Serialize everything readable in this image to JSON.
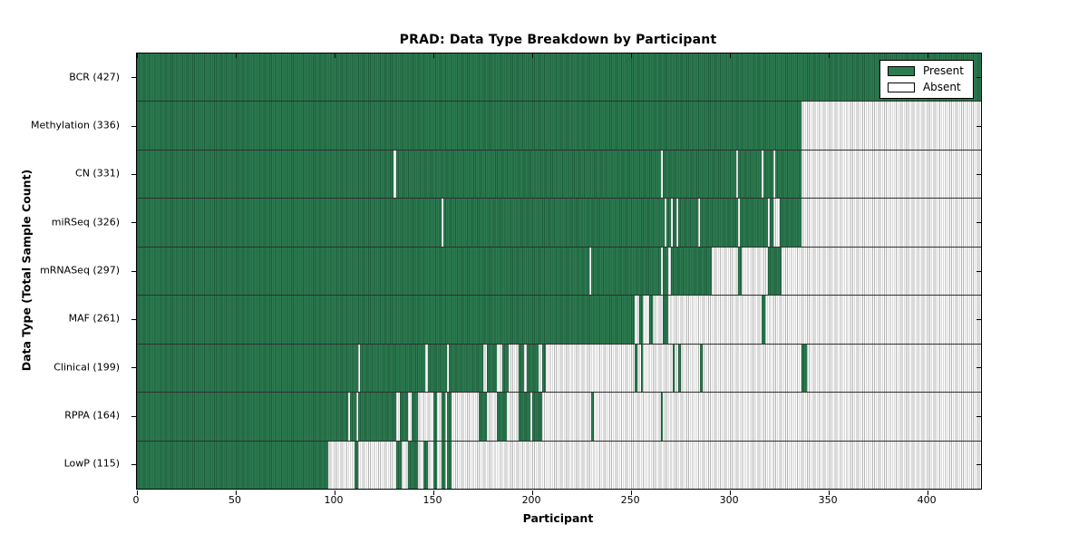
{
  "title": "PRAD: Data Type Breakdown by Participant",
  "axes": {
    "xlabel": "Participant",
    "ylabel": "Data Type (Total Sample Count)"
  },
  "legend": {
    "present_label": "Present",
    "absent_label": "Absent",
    "position": "upper right"
  },
  "colors": {
    "present": "#2d7c51",
    "present_stripe": "#1d5c3b",
    "absent": "#ffffff",
    "absent_stripe": "#b5b5b5",
    "frame": "#000000"
  },
  "chart_data": {
    "type": "heatmap",
    "title": "PRAD: Data Type Breakdown by Participant",
    "xlabel": "Participant",
    "ylabel": "Data Type (Total Sample Count)",
    "legend_entries": [
      "Present",
      "Absent"
    ],
    "legend_position": "upper right",
    "grid": false,
    "x_range": [
      0,
      427
    ],
    "x_ticks": [
      0,
      50,
      100,
      150,
      200,
      250,
      300,
      350,
      400
    ],
    "value_encoding": {
      "present": "green filled column",
      "absent": "white/gray column"
    },
    "rows": [
      {
        "label": "BCR (427)",
        "data_type": "BCR",
        "total_samples": 427,
        "present_segments": [
          [
            0,
            427
          ]
        ]
      },
      {
        "label": "Methylation (336)",
        "data_type": "Methylation",
        "total_samples": 336,
        "present_segments": [
          [
            0,
            336
          ]
        ]
      },
      {
        "label": "CN (331)",
        "data_type": "CN",
        "total_samples": 331,
        "present_segments": [
          [
            0,
            130
          ],
          [
            131,
            265
          ],
          [
            266,
            303
          ],
          [
            304,
            316
          ],
          [
            317,
            322
          ],
          [
            323,
            336
          ]
        ]
      },
      {
        "label": "miRSeq (326)",
        "data_type": "miRSeq",
        "total_samples": 326,
        "present_segments": [
          [
            0,
            154
          ],
          [
            155,
            267
          ],
          [
            268,
            270
          ],
          [
            271,
            273
          ],
          [
            274,
            284
          ],
          [
            285,
            304
          ],
          [
            305,
            319
          ],
          [
            320,
            322
          ],
          [
            325,
            336
          ]
        ]
      },
      {
        "label": "mRNASeq (297)",
        "data_type": "mRNASeq",
        "total_samples": 297,
        "present_segments": [
          [
            0,
            229
          ],
          [
            230,
            265
          ],
          [
            266,
            269
          ],
          [
            270,
            291
          ],
          [
            304,
            306
          ],
          [
            319,
            326
          ]
        ]
      },
      {
        "label": "MAF (261)",
        "data_type": "MAF",
        "total_samples": 261,
        "present_segments": [
          [
            0,
            252
          ],
          [
            254,
            256
          ],
          [
            259,
            261
          ],
          [
            266,
            269
          ],
          [
            316,
            318
          ]
        ]
      },
      {
        "label": "Clinical (199)",
        "data_type": "Clinical",
        "total_samples": 199,
        "present_segments": [
          [
            0,
            112
          ],
          [
            113,
            146
          ],
          [
            147,
            157
          ],
          [
            158,
            175
          ],
          [
            177,
            182
          ],
          [
            185,
            188
          ],
          [
            193,
            196
          ],
          [
            197,
            203
          ],
          [
            205,
            207
          ],
          [
            252,
            253
          ],
          [
            255,
            256
          ],
          [
            271,
            272
          ],
          [
            274,
            275
          ],
          [
            285,
            286
          ],
          [
            336,
            339
          ]
        ]
      },
      {
        "label": "RPPA (164)",
        "data_type": "RPPA",
        "total_samples": 164,
        "present_segments": [
          [
            0,
            107
          ],
          [
            108,
            111
          ],
          [
            112,
            131
          ],
          [
            133,
            137
          ],
          [
            139,
            142
          ],
          [
            150,
            152
          ],
          [
            154,
            156
          ],
          [
            157,
            159
          ],
          [
            173,
            177
          ],
          [
            182,
            187
          ],
          [
            193,
            199
          ],
          [
            200,
            205
          ],
          [
            230,
            231
          ],
          [
            265,
            266
          ]
        ]
      },
      {
        "label": "LowP (115)",
        "data_type": "LowP",
        "total_samples": 115,
        "present_segments": [
          [
            0,
            97
          ],
          [
            110,
            112
          ],
          [
            131,
            134
          ],
          [
            137,
            142
          ],
          [
            145,
            147
          ],
          [
            150,
            152
          ],
          [
            154,
            156
          ],
          [
            157,
            159
          ]
        ]
      }
    ]
  }
}
